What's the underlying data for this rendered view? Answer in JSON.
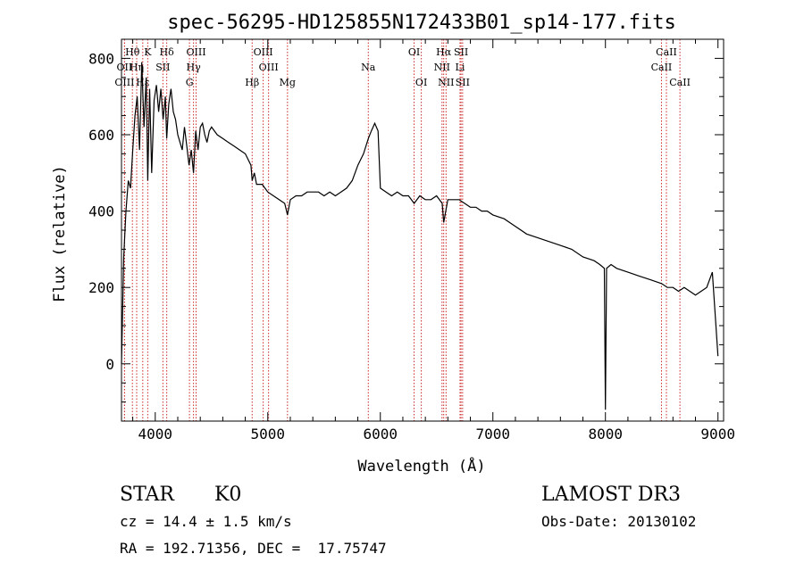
{
  "chart_data": {
    "type": "line",
    "title": "spec-56295-HD125855N172433B01_sp14-177.fits",
    "xlabel": "Wavelength (Å)",
    "ylabel": "Flux (relative)",
    "xlim": [
      3700,
      9050
    ],
    "ylim": [
      -150,
      850
    ],
    "xticks": [
      4000,
      5000,
      6000,
      7000,
      8000,
      9000
    ],
    "yticks": [
      0,
      200,
      400,
      600,
      800
    ],
    "grid": false,
    "series": [
      {
        "x": [
          3700,
          3720,
          3740,
          3760,
          3780,
          3800,
          3820,
          3840,
          3860,
          3880,
          3900,
          3920,
          3933,
          3950,
          3968,
          3990,
          4010,
          4030,
          4050,
          4070,
          4090,
          4102,
          4120,
          4140,
          4160,
          4180,
          4200,
          4220,
          4240,
          4260,
          4280,
          4300,
          4320,
          4340,
          4360,
          4380,
          4400,
          4420,
          4440,
          4460,
          4480,
          4500,
          4550,
          4600,
          4650,
          4700,
          4750,
          4800,
          4850,
          4861,
          4880,
          4900,
          4950,
          5000,
          5050,
          5100,
          5150,
          5175,
          5200,
          5250,
          5300,
          5350,
          5400,
          5450,
          5500,
          5550,
          5600,
          5650,
          5700,
          5750,
          5800,
          5850,
          5893,
          5920,
          5950,
          5980,
          6000,
          6050,
          6100,
          6150,
          6200,
          6250,
          6300,
          6350,
          6400,
          6450,
          6500,
          6550,
          6563,
          6600,
          6650,
          6700,
          6750,
          6800,
          6850,
          6900,
          6950,
          7000,
          7100,
          7200,
          7300,
          7400,
          7500,
          7600,
          7700,
          7800,
          7900,
          7950,
          7990,
          8000,
          8010,
          8050,
          8100,
          8200,
          8300,
          8400,
          8500,
          8550,
          8600,
          8650,
          8700,
          8750,
          8800,
          8850,
          8900,
          8950,
          9000
        ],
        "y": [
          0,
          280,
          400,
          480,
          460,
          560,
          650,
          700,
          560,
          790,
          620,
          750,
          480,
          720,
          500,
          690,
          730,
          660,
          720,
          640,
          700,
          590,
          680,
          720,
          660,
          640,
          600,
          580,
          560,
          620,
          570,
          520,
          560,
          500,
          610,
          560,
          620,
          630,
          600,
          580,
          610,
          620,
          600,
          590,
          580,
          570,
          560,
          550,
          520,
          480,
          500,
          470,
          470,
          450,
          440,
          430,
          420,
          390,
          430,
          440,
          440,
          450,
          450,
          450,
          440,
          450,
          440,
          450,
          460,
          480,
          520,
          550,
          590,
          610,
          630,
          610,
          460,
          450,
          440,
          450,
          440,
          440,
          420,
          440,
          430,
          430,
          440,
          420,
          370,
          430,
          430,
          430,
          420,
          410,
          410,
          400,
          400,
          390,
          380,
          360,
          340,
          330,
          320,
          310,
          300,
          280,
          270,
          260,
          250,
          -120,
          250,
          260,
          250,
          240,
          230,
          220,
          210,
          200,
          200,
          190,
          200,
          190,
          180,
          190,
          200,
          240,
          20
        ]
      }
    ],
    "lines": [
      {
        "label": "Hθ",
        "x": 3797
      },
      {
        "label": "K",
        "x": 3933
      },
      {
        "label": "Hδ",
        "x": 4102
      },
      {
        "label": "OIII",
        "x": 4363
      },
      {
        "label": "OIII",
        "x": 4959
      },
      {
        "label": "OII",
        "x": 3727
      },
      {
        "label": "Hη",
        "x": 3835
      },
      {
        "label": "SII",
        "x": 4068
      },
      {
        "label": "Hγ",
        "x": 4340
      },
      {
        "label": "OIII",
        "x": 5007
      },
      {
        "label": "OIII",
        "x": 3727
      },
      {
        "label": "Hε",
        "x": 3889
      },
      {
        "label": "G",
        "x": 4304
      },
      {
        "label": "Hβ",
        "x": 4861
      },
      {
        "label": "Mg",
        "x": 5175
      },
      {
        "label": "Na",
        "x": 5893
      },
      {
        "label": "OI",
        "x": 6300
      },
      {
        "label": "OI",
        "x": 6364
      },
      {
        "label": "Hα",
        "x": 6563
      },
      {
        "label": "SII",
        "x": 6717
      },
      {
        "label": "NII",
        "x": 6548
      },
      {
        "label": "Li",
        "x": 6708
      },
      {
        "label": "NII",
        "x": 6584
      },
      {
        "label": "SII",
        "x": 6731
      },
      {
        "label": "CaII",
        "x": 8542
      },
      {
        "label": "CaII",
        "x": 8498
      },
      {
        "label": "CaII",
        "x": 8662
      }
    ]
  },
  "info": {
    "object": "STAR",
    "subclass": "K0",
    "survey": "LAMOST DR3",
    "cz": "cz = 14.4 ± 1.5 km/s",
    "obsdate": "Obs-Date: 20130102",
    "radec": "RA = 192.71356, DEC =  17.75747"
  },
  "colors": {
    "spectrum": "#000000",
    "marker": "#cc2a2a"
  }
}
